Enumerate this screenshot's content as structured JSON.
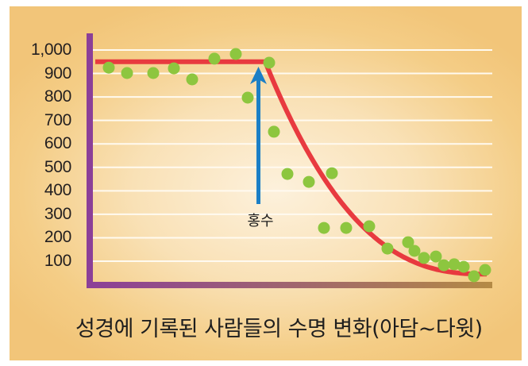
{
  "chart_data": {
    "type": "scatter",
    "title": "성경에 기록된 사람들의 수명 변화(아담~다윗)",
    "xlabel": "",
    "ylabel": "",
    "ylim": [
      0,
      1000
    ],
    "yticks": [
      100,
      200,
      300,
      400,
      500,
      600,
      700,
      800,
      900,
      1000
    ],
    "ytick_labels": [
      "100",
      "200",
      "300",
      "400",
      "500",
      "600",
      "700",
      "800",
      "900",
      "1,000"
    ],
    "grid": true,
    "legend": null,
    "annotations": [
      {
        "text": "홍수",
        "type": "arrow",
        "points_to_index": 8,
        "color": "#1b7fc6"
      }
    ],
    "series": [
      {
        "name": "lifespan",
        "kind": "scatter",
        "color": "#8dc63f",
        "values": [
          925,
          902,
          902,
          922,
          875,
          963,
          983,
          797,
          946,
          652,
          472,
          438,
          475,
          242,
          242,
          249,
          154,
          181,
          144,
          114,
          120,
          83,
          87,
          76,
          36,
          63
        ]
      },
      {
        "name": "trend",
        "kind": "line",
        "color": "#e83a3f",
        "description": "flat at ~950 until flood, then exponential decay to ~50"
      }
    ]
  },
  "axis": {
    "y_color": "#8b3f98",
    "x_color_start": "#8b3f98",
    "x_color_end": "#b48a45"
  },
  "labels": {
    "flood": "홍수",
    "caption": "성경에 기록된 사람들의 수명 변화(아담~다윗)"
  }
}
